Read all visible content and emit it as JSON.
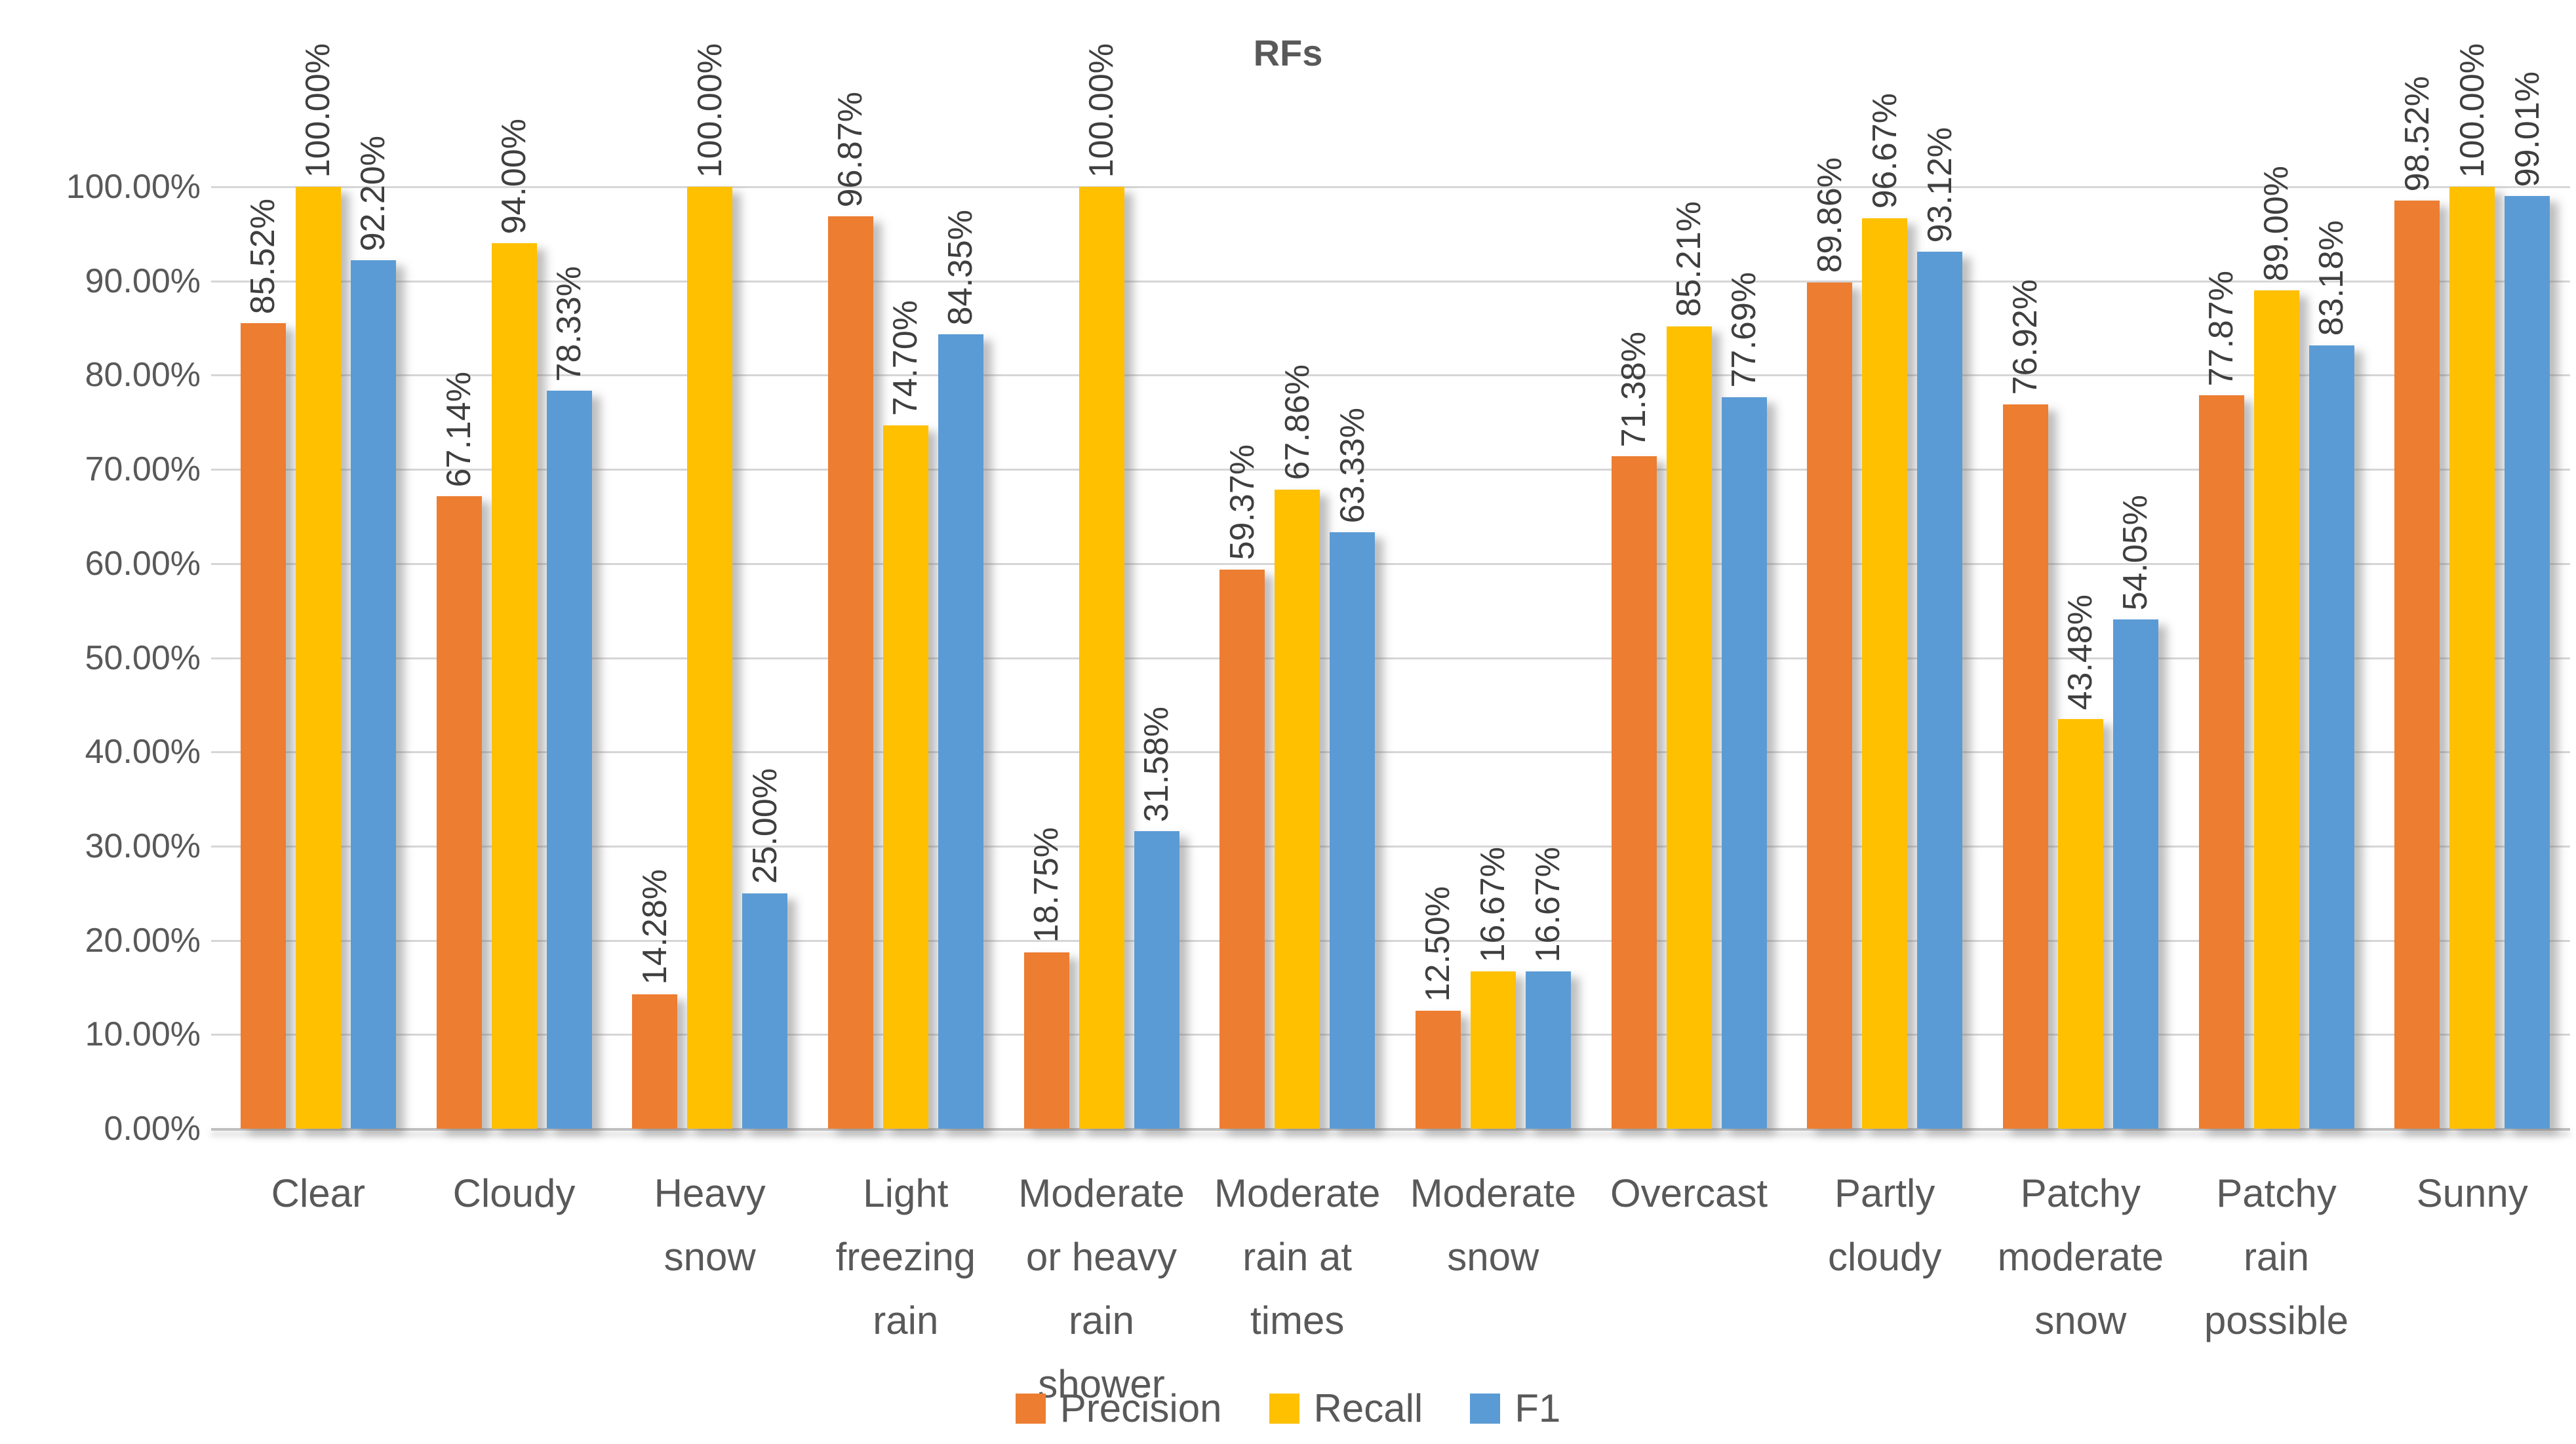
{
  "title": "RFs",
  "chart_data": {
    "type": "bar",
    "title": "RFs",
    "categories": [
      "Clear",
      "Cloudy",
      "Heavy snow",
      "Light freezing rain",
      "Moderate or heavy rain shower",
      "Moderate rain at times",
      "Moderate snow",
      "Overcast",
      "Partly cloudy",
      "Patchy moderate snow",
      "Patchy rain possible",
      "Sunny"
    ],
    "category_label_lines": [
      [
        "Clear"
      ],
      [
        "Cloudy"
      ],
      [
        "Heavy",
        "snow"
      ],
      [
        "Light",
        "freezing",
        "rain"
      ],
      [
        "Moderate",
        "or heavy",
        "rain",
        "shower"
      ],
      [
        "Moderate",
        "rain at",
        "times"
      ],
      [
        "Moderate",
        "snow"
      ],
      [
        "Overcast"
      ],
      [
        "Partly",
        "cloudy"
      ],
      [
        "Patchy",
        "moderate",
        "snow"
      ],
      [
        "Patchy",
        "rain",
        "possible"
      ],
      [
        "Sunny"
      ]
    ],
    "series": [
      {
        "name": "Precision",
        "color": "#ED7D31",
        "values": [
          85.52,
          67.14,
          14.28,
          96.87,
          18.75,
          59.37,
          12.5,
          71.38,
          89.86,
          76.92,
          77.87,
          98.52
        ]
      },
      {
        "name": "Recall",
        "color": "#FFC000",
        "values": [
          100.0,
          94.0,
          100.0,
          74.7,
          100.0,
          67.86,
          16.67,
          85.21,
          96.67,
          43.48,
          89.0,
          100.0
        ]
      },
      {
        "name": "F1",
        "color": "#5B9BD5",
        "values": [
          92.2,
          78.33,
          25.0,
          84.35,
          31.58,
          63.33,
          16.67,
          77.69,
          93.12,
          54.05,
          83.18,
          99.01
        ]
      }
    ],
    "data_label_format": "0.00%",
    "y_ticks": [
      "0.00%",
      "10.00%",
      "20.00%",
      "30.00%",
      "40.00%",
      "50.00%",
      "60.00%",
      "70.00%",
      "80.00%",
      "90.00%",
      "100.00%"
    ],
    "ylim": [
      0,
      100
    ],
    "xlabel": "",
    "ylabel": "",
    "grid": "horizontal",
    "legend_position": "bottom"
  },
  "colors": {
    "axis_text": "#595959",
    "data_label_text": "#3F3F3F",
    "gridline": "#D6D6D6",
    "axis_line": "#BFBFBF",
    "background": "#FFFFFF"
  }
}
